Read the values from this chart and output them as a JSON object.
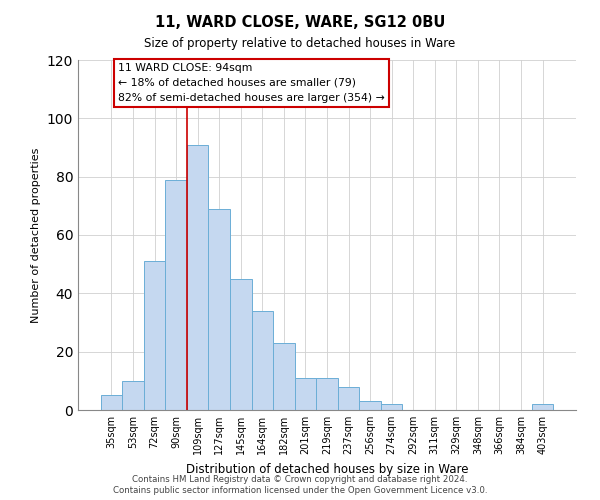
{
  "title": "11, WARD CLOSE, WARE, SG12 0BU",
  "subtitle": "Size of property relative to detached houses in Ware",
  "xlabel": "Distribution of detached houses by size in Ware",
  "ylabel": "Number of detached properties",
  "bar_color": "#c5d8f0",
  "bar_edge_color": "#6baed6",
  "categories": [
    "35sqm",
    "53sqm",
    "72sqm",
    "90sqm",
    "109sqm",
    "127sqm",
    "145sqm",
    "164sqm",
    "182sqm",
    "201sqm",
    "219sqm",
    "237sqm",
    "256sqm",
    "274sqm",
    "292sqm",
    "311sqm",
    "329sqm",
    "348sqm",
    "366sqm",
    "384sqm",
    "403sqm"
  ],
  "values": [
    5,
    10,
    51,
    79,
    91,
    69,
    45,
    34,
    23,
    11,
    11,
    8,
    3,
    2,
    0,
    0,
    0,
    0,
    0,
    0,
    2
  ],
  "ylim": [
    0,
    120
  ],
  "yticks": [
    0,
    20,
    40,
    60,
    80,
    100,
    120
  ],
  "vline_x": 3.5,
  "vline_color": "#cc0000",
  "annotation_title": "11 WARD CLOSE: 94sqm",
  "annotation_line1": "← 18% of detached houses are smaller (79)",
  "annotation_line2": "82% of semi-detached houses are larger (354) →",
  "annotation_box_color": "#ffffff",
  "annotation_box_edge_color": "#cc0000",
  "footer_line1": "Contains HM Land Registry data © Crown copyright and database right 2024.",
  "footer_line2": "Contains public sector information licensed under the Open Government Licence v3.0.",
  "figsize": [
    6.0,
    5.0
  ],
  "dpi": 100
}
